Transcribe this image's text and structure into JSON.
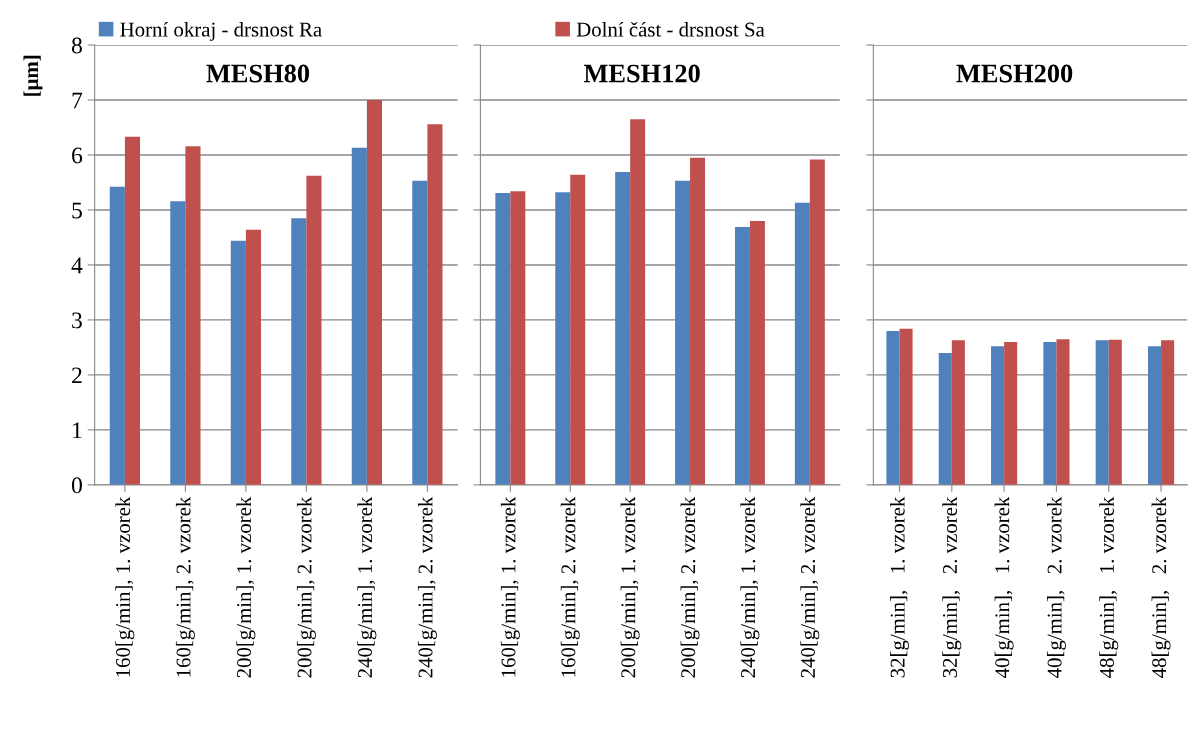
{
  "chart_data": [
    {
      "type": "bar",
      "title": "MESH80",
      "ylabel": "[μm]",
      "categories": [
        "160[g/min], 1. vzorek",
        "160[g/min], 2. vzorek",
        "200[g/min], 1. vzorek",
        "200[g/min], 2. vzorek",
        "240[g/min], 1. vzorek",
        "240[g/min], 2. vzorek"
      ],
      "series": [
        {
          "name": "Horní okraj - drsnost Ra",
          "color": "#4f81bd",
          "values": [
            5.42,
            5.16,
            4.44,
            4.85,
            6.13,
            5.53
          ]
        },
        {
          "color": "#c0504d",
          "values": [
            6.33,
            6.16,
            4.64,
            5.62,
            7.0,
            6.56
          ]
        }
      ],
      "ylim": [
        0,
        8
      ],
      "yticks": [
        0,
        1,
        2,
        3,
        4,
        5,
        6,
        7,
        8
      ],
      "grid": "y",
      "legend": "top left"
    },
    {
      "type": "bar",
      "title": "MESH120",
      "categories": [
        "160[g/min], 1. vzorek",
        "160[g/min], 2. vzorek",
        "200[g/min], 1. vzorek",
        "200[g/min], 2. vzorek",
        "240[g/min], 1. vzorek",
        "240[g/min], 2. vzorek"
      ],
      "series": [
        {
          "color": "#4f81bd",
          "values": [
            5.31,
            5.32,
            5.69,
            5.53,
            4.69,
            5.13
          ]
        },
        {
          "name": "Dolní část - drsnost Sa",
          "color": "#c0504d",
          "values": [
            5.34,
            5.64,
            6.65,
            5.95,
            4.8,
            5.92
          ]
        }
      ],
      "ylim": [
        0,
        8
      ],
      "yticks": [
        0,
        1,
        2,
        3,
        4,
        5,
        6,
        7,
        8
      ],
      "grid": "y",
      "legend": "top",
      "tick_labels": "x"
    },
    {
      "type": "bar",
      "title": "MESH200",
      "categories": [
        "32[g/min],   1. vzorek",
        "32[g/min],   2. vzorek",
        "40[g/min],   1. vzorek",
        "40[g/min],   2. vzorek",
        "48[g/min],   1. vzorek",
        "48[g/min],   2. vzorek"
      ],
      "series": [
        {
          "color": "#4f81bd",
          "values": [
            2.8,
            2.4,
            2.52,
            2.6,
            2.63,
            2.52
          ]
        },
        {
          "color": "#c0504d",
          "values": [
            2.84,
            2.63,
            2.6,
            2.65,
            2.64,
            2.63
          ]
        }
      ],
      "ylim": [
        0,
        8
      ],
      "yticks": [
        0,
        1,
        2,
        3,
        4,
        5,
        6,
        7,
        8
      ],
      "grid": "y",
      "tick_labels": "x"
    }
  ]
}
